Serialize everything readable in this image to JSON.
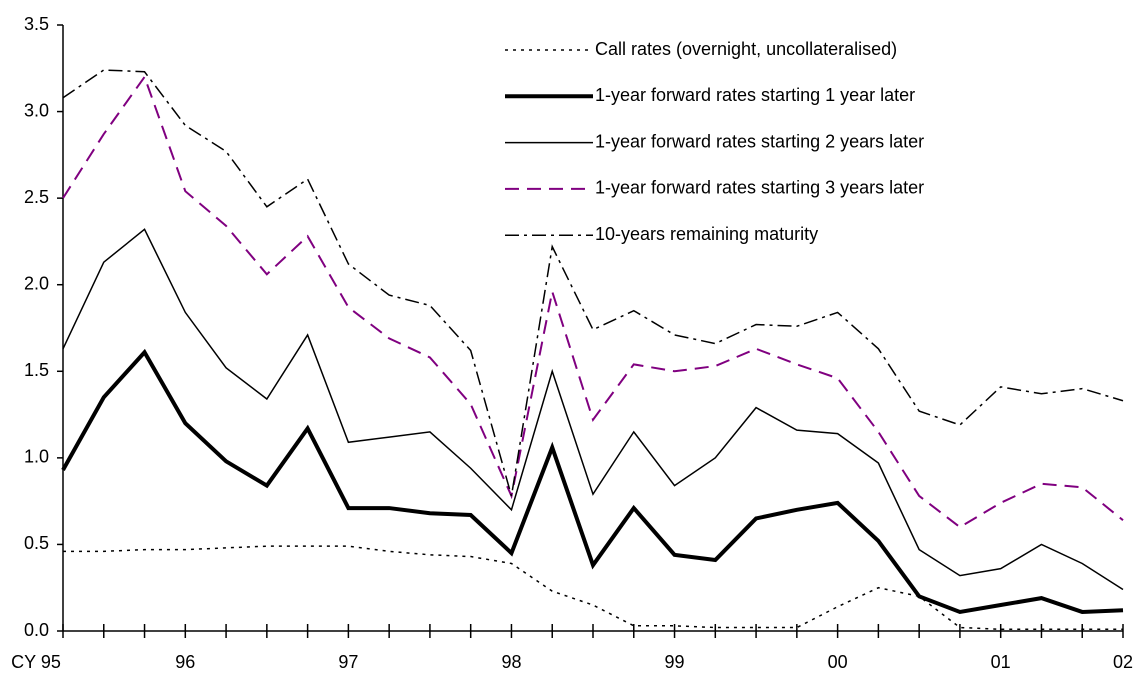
{
  "chart_data": {
    "type": "line",
    "categories": [
      "CY 95",
      null,
      null,
      "96",
      null,
      null,
      null,
      "97",
      null,
      null,
      null,
      "98",
      null,
      null,
      null,
      "99",
      null,
      null,
      null,
      "00",
      null,
      null,
      null,
      "01",
      null,
      null,
      "02"
    ],
    "ylim": [
      0,
      3.5
    ],
    "yticks": [
      {
        "value": 0,
        "label": "0.0"
      },
      {
        "value": 0.5,
        "label": "0.5"
      },
      {
        "value": 1,
        "label": "1.0"
      },
      {
        "value": 1.5,
        "label": "1.5"
      },
      {
        "value": 2,
        "label": "2.0"
      },
      {
        "value": 2.5,
        "label": "2.5"
      },
      {
        "value": 3,
        "label": "3.0"
      },
      {
        "value": 3.5,
        "label": "3.5"
      }
    ],
    "grid": false,
    "legend": "top-right",
    "series": [
      {
        "name": "Call rates (overnight, uncollateralised)",
        "color": "#000000",
        "width": 1.5,
        "dash": "3,5",
        "values": [
          0.46,
          0.46,
          0.47,
          0.47,
          0.48,
          0.49,
          0.49,
          0.49,
          0.46,
          0.44,
          0.43,
          0.39,
          0.23,
          0.15,
          0.03,
          0.03,
          0.02,
          0.02,
          0.02,
          0.14,
          0.25,
          0.2,
          0.02,
          0.01,
          0.01,
          0.01,
          0.01
        ]
      },
      {
        "name": "1-year forward rates starting 1 year later",
        "color": "#000000",
        "width": 4,
        "dash": "none",
        "values": [
          0.93,
          1.35,
          1.61,
          1.2,
          0.98,
          0.84,
          1.17,
          0.71,
          0.71,
          0.68,
          0.67,
          0.45,
          1.06,
          0.38,
          0.71,
          0.44,
          0.41,
          0.65,
          0.7,
          0.74,
          0.52,
          0.2,
          0.11,
          0.15,
          0.19,
          0.11,
          0.12
        ]
      },
      {
        "name": "1-year forward rates starting 2 years later",
        "color": "#000000",
        "width": 1.5,
        "dash": "none",
        "values": [
          1.63,
          2.13,
          2.32,
          1.84,
          1.52,
          1.34,
          1.71,
          1.09,
          1.12,
          1.15,
          0.94,
          0.7,
          1.5,
          0.79,
          1.15,
          0.84,
          1.0,
          1.29,
          1.16,
          1.14,
          0.97,
          0.47,
          0.32,
          0.36,
          0.5,
          0.39,
          0.24
        ]
      },
      {
        "name": "1-year forward rates starting 3 years later",
        "color": "#800080",
        "width": 2,
        "dash": "14,8",
        "values": [
          2.5,
          2.87,
          3.2,
          2.54,
          2.34,
          2.06,
          2.28,
          1.87,
          1.69,
          1.58,
          1.31,
          0.78,
          1.96,
          1.22,
          1.54,
          1.5,
          1.53,
          1.63,
          1.54,
          1.46,
          1.15,
          0.78,
          0.6,
          0.74,
          0.85,
          0.83,
          0.64
        ]
      },
      {
        "name": "10-years remaining maturity",
        "color": "#000000",
        "width": 1.5,
        "dash": "14,5,3,5",
        "values": [
          3.08,
          3.24,
          3.23,
          2.92,
          2.77,
          2.45,
          2.61,
          2.12,
          1.94,
          1.88,
          1.62,
          0.78,
          2.22,
          1.74,
          1.85,
          1.71,
          1.66,
          1.77,
          1.76,
          1.84,
          1.63,
          1.27,
          1.19,
          1.41,
          1.37,
          1.4,
          1.33
        ]
      }
    ]
  }
}
